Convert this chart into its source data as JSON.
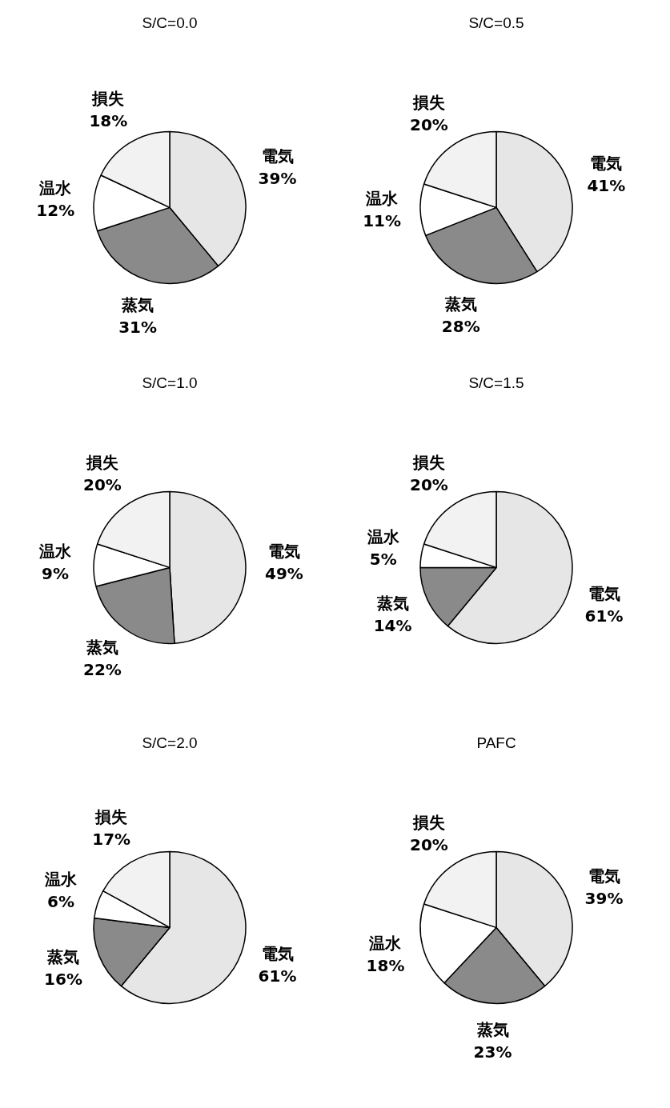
{
  "chart_data": [
    {
      "type": "pie",
      "title": "S/C=0.0",
      "categories": [
        "電気",
        "蒸気",
        "温水",
        "損失"
      ],
      "values": [
        39,
        31,
        12,
        18
      ],
      "colors": [
        "#e6e6e6",
        "#8a8a8a",
        "#ffffff",
        "#f2f2f2"
      ],
      "value_labels": [
        "39%",
        "31%",
        "12%",
        "18%"
      ]
    },
    {
      "type": "pie",
      "title": "S/C=0.5",
      "categories": [
        "電気",
        "蒸気",
        "温水",
        "損失"
      ],
      "values": [
        41,
        28,
        11,
        20
      ],
      "colors": [
        "#e6e6e6",
        "#8a8a8a",
        "#ffffff",
        "#f2f2f2"
      ],
      "value_labels": [
        "41%",
        "28%",
        "11%",
        "20%"
      ]
    },
    {
      "type": "pie",
      "title": "S/C=1.0",
      "categories": [
        "電気",
        "蒸気",
        "温水",
        "損失"
      ],
      "values": [
        49,
        22,
        9,
        20
      ],
      "colors": [
        "#e6e6e6",
        "#8a8a8a",
        "#ffffff",
        "#f2f2f2"
      ],
      "value_labels": [
        "49%",
        "22%",
        "9%",
        "20%"
      ]
    },
    {
      "type": "pie",
      "title": "S/C=1.5",
      "categories": [
        "電気",
        "蒸気",
        "温水",
        "損失"
      ],
      "values": [
        61,
        14,
        5,
        20
      ],
      "colors": [
        "#e6e6e6",
        "#8a8a8a",
        "#ffffff",
        "#f2f2f2"
      ],
      "value_labels": [
        "61%",
        "14%",
        "5%",
        "20%"
      ]
    },
    {
      "type": "pie",
      "title": "S/C=2.0",
      "categories": [
        "電気",
        "蒸気",
        "温水",
        "損失"
      ],
      "values": [
        61,
        16,
        6,
        17
      ],
      "colors": [
        "#e6e6e6",
        "#8a8a8a",
        "#ffffff",
        "#f2f2f2"
      ],
      "value_labels": [
        "61%",
        "16%",
        "6%",
        "17%"
      ]
    },
    {
      "type": "pie",
      "title": "PAFC",
      "categories": [
        "電気",
        "蒸気",
        "温水",
        "損失"
      ],
      "values": [
        39,
        23,
        18,
        20
      ],
      "colors": [
        "#e6e6e6",
        "#8a8a8a",
        "#ffffff",
        "#f2f2f2"
      ],
      "value_labels": [
        "39%",
        "23%",
        "18%",
        "20%"
      ]
    }
  ]
}
